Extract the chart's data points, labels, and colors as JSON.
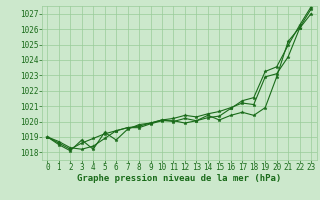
{
  "title": "Graphe pression niveau de la mer (hPa)",
  "bg_color": "#cce8cc",
  "grid_color": "#99cc99",
  "line_color": "#1a6b1a",
  "xlim": [
    -0.5,
    23.5
  ],
  "ylim": [
    1017.5,
    1027.5
  ],
  "yticks": [
    1018,
    1019,
    1020,
    1021,
    1022,
    1023,
    1024,
    1025,
    1026,
    1027
  ],
  "xticks": [
    0,
    1,
    2,
    3,
    4,
    5,
    6,
    7,
    8,
    9,
    10,
    11,
    12,
    13,
    14,
    15,
    16,
    17,
    18,
    19,
    20,
    21,
    22,
    23
  ],
  "hours": [
    0,
    1,
    2,
    3,
    4,
    5,
    6,
    7,
    8,
    9,
    10,
    11,
    12,
    13,
    14,
    15,
    16,
    17,
    18,
    19,
    20,
    21,
    22,
    23
  ],
  "series_zigzag": [
    1019.0,
    1018.5,
    1018.1,
    1018.8,
    1018.2,
    1019.3,
    1018.8,
    1019.5,
    1019.8,
    1019.9,
    1020.1,
    1020.0,
    1020.2,
    1020.05,
    1020.4,
    1020.1,
    1020.4,
    1020.6,
    1020.4,
    1020.9,
    1022.9,
    1025.2,
    1026.1,
    1027.3
  ],
  "series_mid": [
    1019.0,
    1018.6,
    1018.2,
    1018.6,
    1018.9,
    1019.2,
    1019.4,
    1019.6,
    1019.7,
    1019.9,
    1020.1,
    1020.2,
    1020.4,
    1020.3,
    1020.5,
    1020.65,
    1020.9,
    1021.2,
    1021.1,
    1022.9,
    1023.1,
    1024.2,
    1026.05,
    1027.0
  ],
  "series_top": [
    1019.0,
    1018.7,
    1018.3,
    1018.2,
    1018.4,
    1018.9,
    1019.4,
    1019.6,
    1019.6,
    1019.85,
    1020.05,
    1020.05,
    1019.9,
    1020.05,
    1020.25,
    1020.35,
    1020.85,
    1021.35,
    1021.55,
    1023.25,
    1023.55,
    1024.95,
    1026.25,
    1027.45
  ],
  "marker_size": 2.5,
  "line_width": 0.8,
  "tick_fontsize": 5.5,
  "title_fontsize": 6.5
}
